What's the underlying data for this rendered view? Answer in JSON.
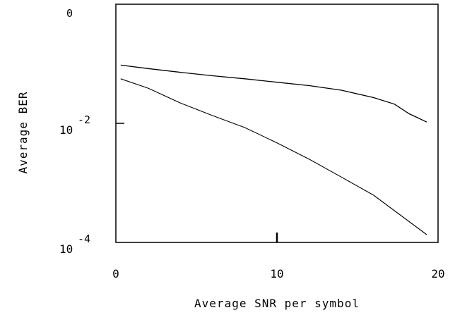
{
  "chart_data": {
    "type": "line",
    "title": "",
    "xlabel": "Average SNR per symbol",
    "ylabel": "Average BER",
    "x_scale": "linear",
    "y_scale": "log",
    "xlim": [
      0,
      20
    ],
    "ylim": [
      0.0001,
      1
    ],
    "x_ticks": [
      {
        "value": 0,
        "label": "0"
      },
      {
        "value": 10,
        "label": "10"
      },
      {
        "value": 20,
        "label": "20"
      }
    ],
    "y_ticks": [
      {
        "exp": 0,
        "base": "",
        "exponent": "0"
      },
      {
        "exp": -2,
        "base": "10",
        "exponent": "-2"
      },
      {
        "exp": -4,
        "base": "10",
        "exponent": "-4"
      }
    ],
    "grid": false,
    "legend": null,
    "series": [
      {
        "x": [
          0.3,
          2,
          4,
          6,
          8,
          10,
          12,
          14,
          16,
          17.3,
          18.2,
          19.3
        ],
        "y": [
          0.095,
          0.083,
          0.072,
          0.063,
          0.056,
          0.049,
          0.043,
          0.036,
          0.027,
          0.021,
          0.0145,
          0.0105
        ]
      },
      {
        "x": [
          0.3,
          2,
          4,
          6,
          8,
          10,
          12,
          14,
          16,
          17.5,
          19.3
        ],
        "y": [
          0.056,
          0.039,
          0.022,
          0.0135,
          0.0085,
          0.0047,
          0.0025,
          0.00125,
          0.00062,
          0.00031,
          0.000135
        ]
      }
    ]
  }
}
